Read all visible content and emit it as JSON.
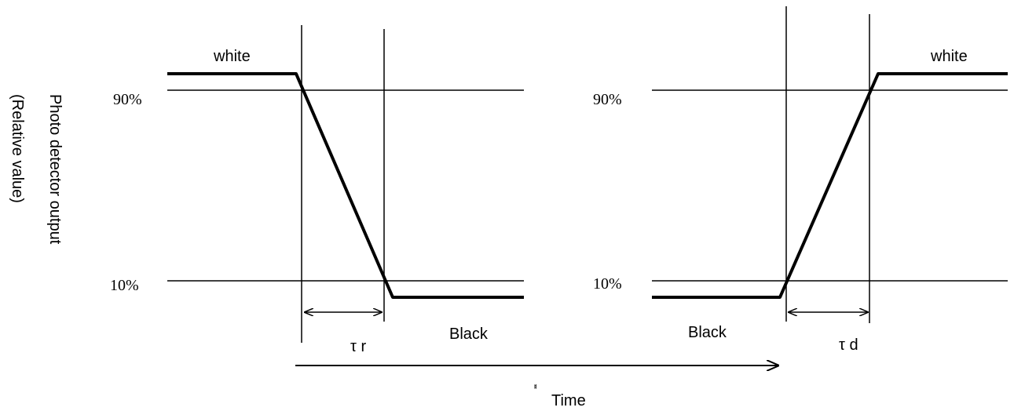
{
  "y_axis": {
    "line1": "Photo detector output",
    "line2": "(Relative value)"
  },
  "left_panel": {
    "level_90": "90%",
    "level_10": "10%",
    "state_high": "white",
    "state_low": "Black",
    "interval": "τ r"
  },
  "right_panel": {
    "level_90": "90%",
    "level_10": "10%",
    "state_high": "white",
    "state_low": "Black",
    "interval": "τ d"
  },
  "time_axis": {
    "label": "Time",
    "stray_mark": "ᅤ"
  }
}
